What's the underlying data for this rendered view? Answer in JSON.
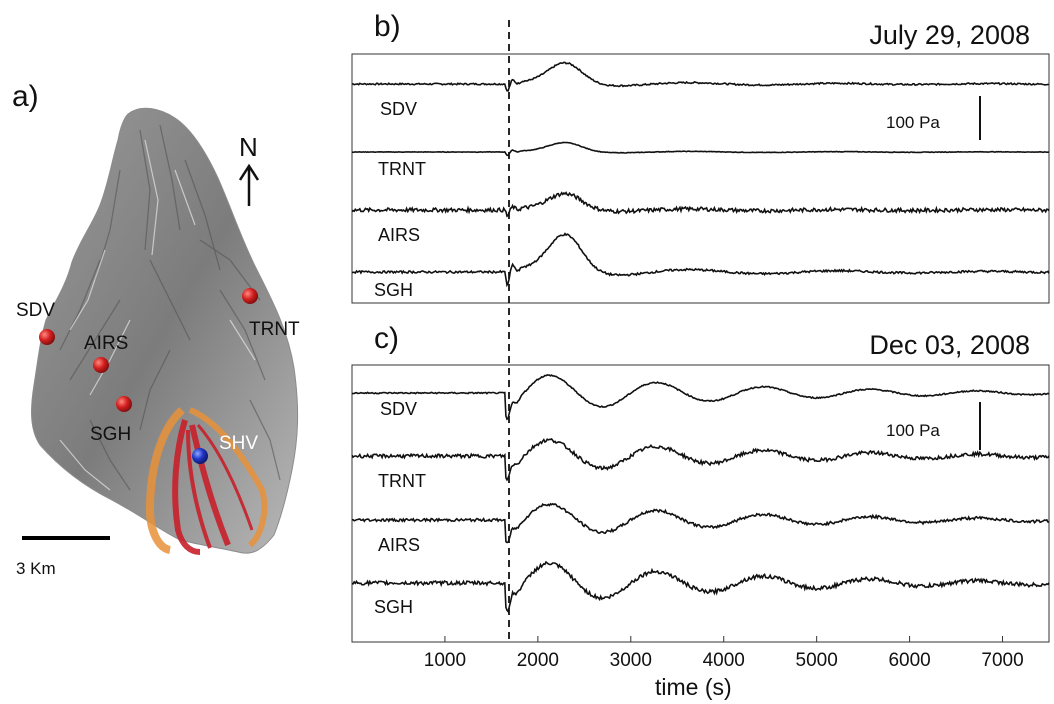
{
  "panels": {
    "a": "a)",
    "b": "b)",
    "c": "c)"
  },
  "map": {
    "north_label": "N",
    "stations": [
      "SDV",
      "AIRS",
      "SGH",
      "TRNT"
    ],
    "volcano": "SHV",
    "scale_label": "3 Km",
    "colors": {
      "station": "#d42020",
      "volcano": "#1f35c8",
      "flow_orange": "#e8923a",
      "flow_red": "#c81f2a"
    }
  },
  "chart_data": [
    {
      "type": "line",
      "title": "July 29, 2008",
      "series": [
        {
          "name": "SDV",
          "amplitude_pa": 45
        },
        {
          "name": "TRNT",
          "amplitude_pa": 20
        },
        {
          "name": "AIRS",
          "amplitude_pa": 35
        },
        {
          "name": "SGH",
          "amplitude_pa": 80
        }
      ],
      "scale_bar": "100 Pa",
      "xlim": [
        0,
        7500
      ],
      "event_time_s": 1650
    },
    {
      "type": "line",
      "title": "Dec 03, 2008",
      "series": [
        {
          "name": "SDV",
          "amplitude_pa": 50
        },
        {
          "name": "TRNT",
          "amplitude_pa": 45
        },
        {
          "name": "AIRS",
          "amplitude_pa": 45
        },
        {
          "name": "SGH",
          "amplitude_pa": 55
        }
      ],
      "scale_bar": "100 Pa",
      "xlim": [
        0,
        7500
      ],
      "xticks": [
        1000,
        2000,
        3000,
        4000,
        5000,
        6000,
        7000
      ],
      "xlabel": "time (s)",
      "event_time_s": 1650
    }
  ]
}
